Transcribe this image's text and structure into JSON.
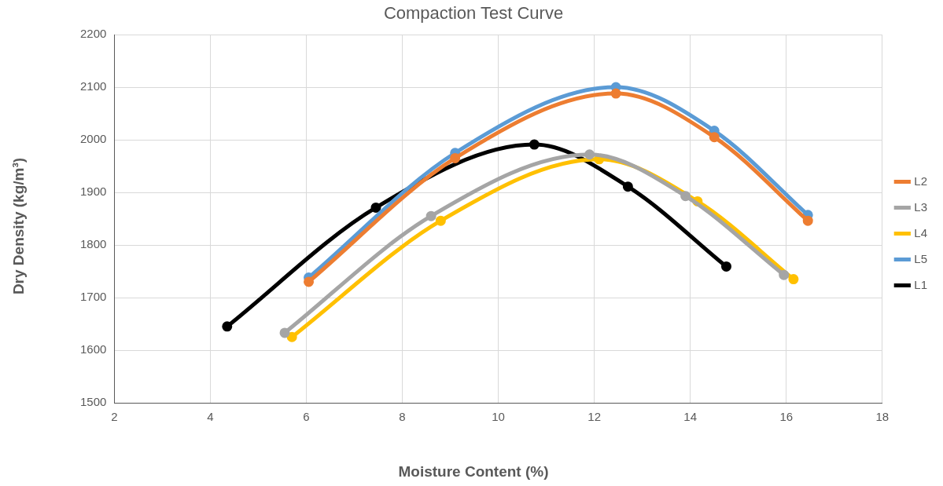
{
  "chart_data": {
    "type": "line",
    "title": "Compaction Test Curve",
    "xlabel": "Moisture Content (%)",
    "ylabel": "Dry Density (kg/m³)",
    "xlim": [
      2,
      18
    ],
    "xticks": [
      2,
      4,
      6,
      8,
      10,
      12,
      14,
      16,
      18
    ],
    "ylim": [
      1500,
      2200
    ],
    "yticks": [
      1500,
      1600,
      1700,
      1800,
      1900,
      2000,
      2100,
      2200
    ],
    "grid": true,
    "legend": "right",
    "marker": "circle",
    "series": [
      {
        "name": "L2",
        "color": "#ed7d31",
        "x": [
          6.05,
          9.1,
          12.45,
          14.5,
          16.45
        ],
        "values": [
          1730,
          1965,
          2088,
          2005,
          1846
        ]
      },
      {
        "name": "L3",
        "color": "#a5a5a5",
        "x": [
          5.55,
          8.6,
          11.9,
          13.9,
          15.95
        ],
        "values": [
          1633,
          1855,
          1972,
          1893,
          1743
        ]
      },
      {
        "name": "L4",
        "color": "#ffc000",
        "x": [
          5.7,
          8.8,
          12.1,
          14.15,
          16.15
        ],
        "values": [
          1625,
          1846,
          1963,
          1883,
          1735
        ]
      },
      {
        "name": "L5",
        "color": "#5b9bd5",
        "x": [
          6.05,
          9.1,
          12.45,
          14.5,
          16.45
        ],
        "values": [
          1738,
          1975,
          2100,
          2017,
          1857
        ]
      },
      {
        "name": "L1",
        "color": "#000000",
        "x": [
          4.35,
          7.45,
          10.75,
          12.7,
          14.75
        ],
        "values": [
          1645,
          1871,
          1991,
          1911,
          1759
        ]
      }
    ]
  }
}
